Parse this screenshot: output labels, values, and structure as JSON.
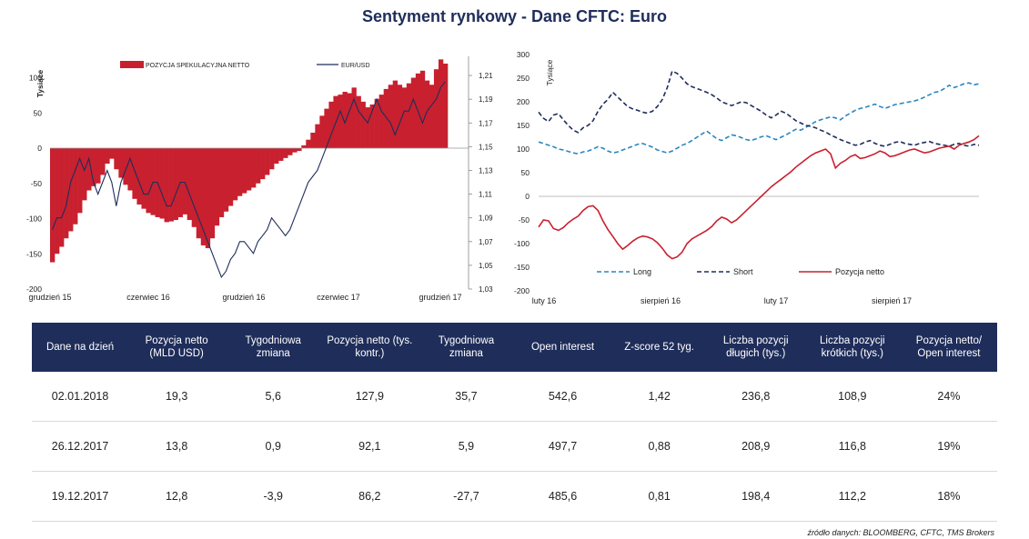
{
  "title": "Sentyment rynkowy - Dane CFTC:  Euro",
  "source": "źródło danych: BLOOMBERG, CFTC, TMS Brokers",
  "chart_data": [
    {
      "type": "bar",
      "id": "left",
      "ylabel": "Tysiące",
      "ylim": [
        -200,
        120
      ],
      "yticks": [
        -200,
        -150,
        -100,
        -50,
        0,
        50,
        100
      ],
      "y2lim": [
        1.03,
        1.22
      ],
      "y2ticks": [
        "1,03",
        "1,05",
        "1,07",
        "1,09",
        "1,11",
        "1,13",
        "1,15",
        "1,17",
        "1,19",
        "1,21"
      ],
      "y2tick_values": [
        1.03,
        1.05,
        1.07,
        1.09,
        1.11,
        1.13,
        1.15,
        1.17,
        1.19,
        1.21
      ],
      "xticks": [
        "grudzień 15",
        "czerwiec 16",
        "grudzień 16",
        "czerwiec 17",
        "grudzień 17"
      ],
      "legend_placement": "top",
      "colors": {
        "bars": "#c8202f",
        "line": "#1f2d5a"
      },
      "series": [
        {
          "name": "POZYCJA SPEKULACYJNA NETTO",
          "kind": "bar",
          "values": [
            -162,
            -150,
            -140,
            -128,
            -118,
            -108,
            -92,
            -74,
            -60,
            -54,
            -50,
            -38,
            -22,
            -15,
            -30,
            -42,
            -52,
            -60,
            -72,
            -80,
            -86,
            -92,
            -95,
            -98,
            -100,
            -105,
            -104,
            -102,
            -98,
            -94,
            -102,
            -112,
            -128,
            -138,
            -142,
            -128,
            -110,
            -98,
            -90,
            -82,
            -74,
            -68,
            -64,
            -60,
            -56,
            -50,
            -44,
            -38,
            -30,
            -22,
            -18,
            -14,
            -10,
            -6,
            -4,
            4,
            12,
            22,
            34,
            46,
            56,
            66,
            74,
            76,
            80,
            78,
            86,
            74,
            66,
            58,
            62,
            70,
            76,
            84,
            90,
            96,
            90,
            86,
            92,
            100,
            106,
            110,
            96,
            90,
            112,
            126,
            120
          ]
        },
        {
          "name": "EUR/USD",
          "kind": "line",
          "axis": "right",
          "values": [
            1.08,
            1.09,
            1.09,
            1.1,
            1.12,
            1.13,
            1.14,
            1.13,
            1.14,
            1.12,
            1.11,
            1.12,
            1.13,
            1.12,
            1.1,
            1.12,
            1.13,
            1.14,
            1.13,
            1.12,
            1.11,
            1.11,
            1.12,
            1.12,
            1.11,
            1.1,
            1.1,
            1.11,
            1.12,
            1.12,
            1.11,
            1.1,
            1.09,
            1.08,
            1.07,
            1.06,
            1.05,
            1.04,
            1.045,
            1.055,
            1.06,
            1.07,
            1.07,
            1.065,
            1.06,
            1.07,
            1.075,
            1.08,
            1.09,
            1.085,
            1.08,
            1.075,
            1.08,
            1.09,
            1.1,
            1.11,
            1.12,
            1.125,
            1.13,
            1.14,
            1.15,
            1.16,
            1.17,
            1.18,
            1.17,
            1.18,
            1.19,
            1.18,
            1.175,
            1.17,
            1.18,
            1.19,
            1.18,
            1.175,
            1.17,
            1.16,
            1.17,
            1.18,
            1.18,
            1.19,
            1.18,
            1.17,
            1.18,
            1.185,
            1.19,
            1.2,
            1.205
          ]
        }
      ]
    },
    {
      "type": "line",
      "id": "right",
      "ylabel": "Tysiące",
      "ylim": [
        -200,
        300
      ],
      "yticks": [
        -200,
        -150,
        -100,
        -50,
        0,
        50,
        100,
        150,
        200,
        250,
        300
      ],
      "xticks": [
        "luty 16",
        "sierpień 16",
        "luty 17",
        "sierpień 17"
      ],
      "legend_placement": "bottom",
      "series": [
        {
          "name": "Long",
          "color": "#2a86c0",
          "dash": "dashed",
          "values": [
            115,
            112,
            108,
            105,
            100,
            98,
            95,
            92,
            90,
            94,
            96,
            100,
            105,
            102,
            96,
            92,
            94,
            98,
            102,
            106,
            110,
            112,
            108,
            104,
            98,
            95,
            92,
            96,
            102,
            108,
            112,
            118,
            125,
            132,
            138,
            130,
            122,
            118,
            124,
            130,
            128,
            124,
            120,
            118,
            122,
            126,
            128,
            124,
            120,
            125,
            130,
            136,
            142,
            140,
            146,
            152,
            158,
            162,
            165,
            168,
            166,
            162,
            170,
            176,
            182,
            186,
            188,
            192,
            195,
            190,
            186,
            190,
            194,
            196,
            198,
            200,
            202,
            205,
            210,
            215,
            220,
            222,
            228,
            235,
            230,
            234,
            238,
            240,
            236,
            238
          ]
        },
        {
          "name": "Short",
          "color": "#1f2d5a",
          "dash": "dashed",
          "values": [
            178,
            165,
            158,
            172,
            175,
            162,
            150,
            140,
            135,
            145,
            150,
            160,
            180,
            195,
            205,
            220,
            210,
            200,
            190,
            185,
            182,
            178,
            176,
            180,
            190,
            205,
            230,
            265,
            260,
            250,
            238,
            232,
            228,
            224,
            220,
            215,
            208,
            200,
            196,
            192,
            196,
            200,
            198,
            192,
            186,
            180,
            172,
            166,
            172,
            180,
            176,
            168,
            160,
            155,
            150,
            148,
            145,
            140,
            136,
            130,
            125,
            120,
            116,
            112,
            108,
            110,
            115,
            118,
            112,
            108,
            106,
            110,
            114,
            116,
            112,
            110,
            108,
            112,
            114,
            116,
            112,
            110,
            108,
            106,
            110,
            112,
            108,
            106,
            110,
            108
          ]
        },
        {
          "name": "Pozycja netto",
          "color": "#c8202f",
          "dash": "solid",
          "values": [
            -65,
            -50,
            -52,
            -68,
            -72,
            -66,
            -56,
            -48,
            -42,
            -30,
            -22,
            -20,
            -30,
            -52,
            -70,
            -85,
            -100,
            -112,
            -104,
            -95,
            -88,
            -84,
            -86,
            -90,
            -98,
            -110,
            -124,
            -132,
            -128,
            -118,
            -100,
            -90,
            -84,
            -78,
            -72,
            -64,
            -52,
            -44,
            -48,
            -56,
            -50,
            -40,
            -30,
            -20,
            -10,
            0,
            10,
            20,
            28,
            36,
            44,
            52,
            62,
            70,
            78,
            86,
            92,
            96,
            100,
            90,
            60,
            70,
            76,
            84,
            88,
            80,
            82,
            86,
            90,
            96,
            92,
            84,
            86,
            90,
            94,
            98,
            100,
            96,
            92,
            94,
            98,
            102,
            104,
            106,
            100,
            108,
            112,
            115,
            120,
            128
          ]
        }
      ]
    }
  ],
  "table": {
    "headers": [
      "Dane na dzień",
      "Pozycja netto (MLD USD)",
      "Tygodniowa zmiana",
      "Pozycja netto (tys. kontr.)",
      "Tygodniowa zmiana",
      "Open interest",
      "Z-score 52 tyg.",
      "Liczba pozycji długich (tys.)",
      "Liczba pozycji krótkich (tys.)",
      "Pozycja netto/ Open interest"
    ],
    "rows": [
      [
        "02.01.2018",
        "19,3",
        "5,6",
        "127,9",
        "35,7",
        "542,6",
        "1,42",
        "236,8",
        "108,9",
        "24%"
      ],
      [
        "26.12.2017",
        "13,8",
        "0,9",
        "92,1",
        "5,9",
        "497,7",
        "0,88",
        "208,9",
        "116,8",
        "19%"
      ],
      [
        "19.12.2017",
        "12,8",
        "-3,9",
        "86,2",
        "-27,7",
        "485,6",
        "0,81",
        "198,4",
        "112,2",
        "18%"
      ]
    ]
  }
}
